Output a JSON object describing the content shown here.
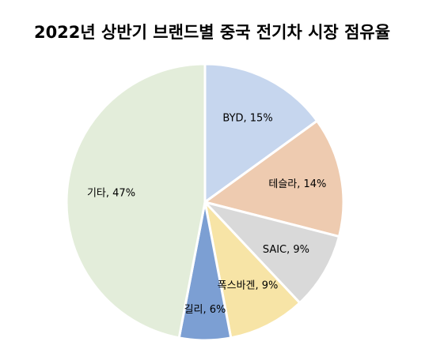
{
  "chart_data": {
    "type": "pie",
    "title": "2022년 상반기 브랜드별 중국 전기차 시장 점유율",
    "values": [
      15,
      14,
      9,
      9,
      6,
      47
    ],
    "value_labels": [
      "BYD, 15%",
      "테슬라, 14%",
      "SAIC, 9%",
      "폭스바겐, 9%",
      "길리, 6%",
      "기타, 47%"
    ],
    "colors": [
      "#c6d6ee",
      "#eecbb0",
      "#d9d9d9",
      "#f7e4a6",
      "#7c9fd3",
      "#e3edda"
    ]
  }
}
